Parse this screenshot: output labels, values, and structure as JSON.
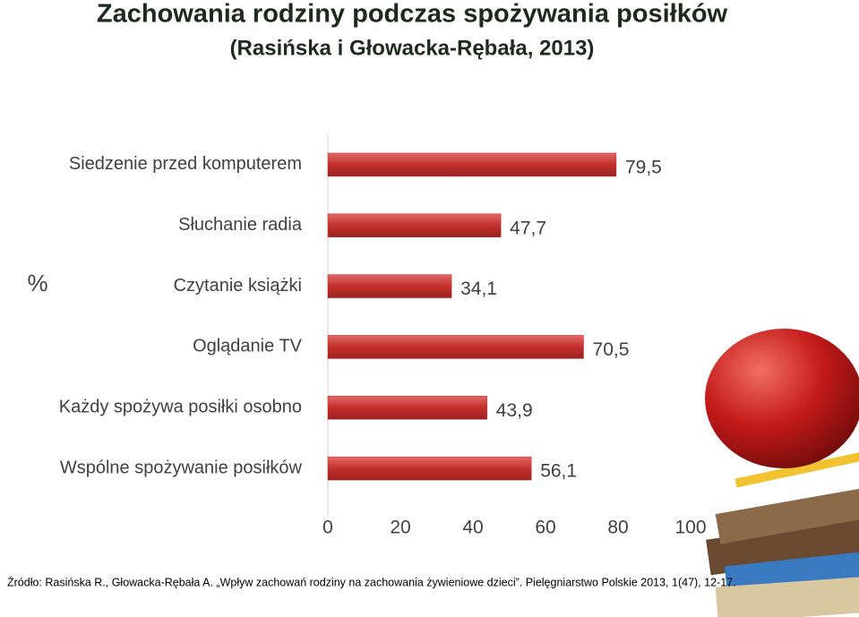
{
  "chart_data": {
    "type": "bar",
    "orientation": "horizontal",
    "title": "Zachowania rodziny podczas spożywania posiłków",
    "subtitle": "(Rasińska i Głowacka-Rębała, 2013)",
    "ylabel": "%",
    "categories": [
      "Siedzenie przed komputerem",
      "Słuchanie radia",
      "Czytanie książki",
      "Oglądanie TV",
      "Każdy spożywa posiłki osobno",
      "Wspólne spożywanie posiłków"
    ],
    "values": [
      79.5,
      47.7,
      34.1,
      70.5,
      43.9,
      56.1
    ],
    "value_labels": [
      "79,5",
      "47,7",
      "34,1",
      "70,5",
      "43,9",
      "56,1"
    ],
    "color": "#c3302c",
    "xlim": [
      0,
      100
    ],
    "xticks": [
      0,
      20,
      40,
      60,
      80,
      100
    ],
    "grid": false,
    "source": "Źródło: Rasińska R., Głowacka-Rębała A. „Wpływ zachowań rodziny na zachowania żywieniowe dzieci”. Pielęgniarstwo Polskie 2013, 1(47), 12-17."
  }
}
